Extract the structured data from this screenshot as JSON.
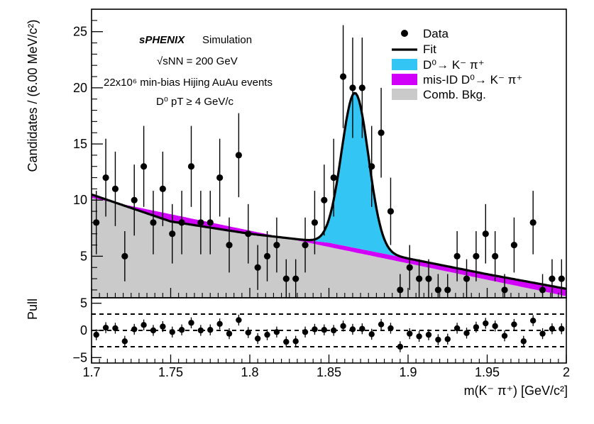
{
  "chart_data": {
    "type": "scatter",
    "x_range": [
      1.7,
      2.0
    ],
    "xlabel": "m(K⁻ π⁺) [GeV/c²]",
    "x_ticks": [
      1.7,
      1.75,
      1.8,
      1.85,
      1.9,
      1.95,
      2.0
    ],
    "x_tick_labels": [
      "1.7",
      "1.75",
      "1.8",
      "1.85",
      "1.9",
      "1.95",
      "2"
    ],
    "main_panel": {
      "ylabel": "Candidates / (6.00 MeV/c²)",
      "ylim": [
        1.3,
        27
      ],
      "y_ticks": [
        5,
        10,
        15,
        20,
        25
      ],
      "y_tick_labels": [
        "5",
        "10",
        "15",
        "20",
        "25"
      ],
      "annotations": {
        "experiment": "sPHENIX",
        "experiment_suffix": "Simulation",
        "energy": "√sNN = 200 GeV",
        "events": "22x10⁶ min-bias Hijing AuAu events",
        "cut": "D⁰ pT ≥ 4 GeV/c"
      },
      "legend": {
        "placement": "top-right",
        "entries": [
          {
            "label": "Data",
            "style": "marker",
            "color": "#000000"
          },
          {
            "label": "Fit",
            "style": "line",
            "color": "#000000"
          },
          {
            "label": "D⁰→ K⁻ π⁺",
            "style": "fill",
            "color": "#33c6f4"
          },
          {
            "label": "mis-ID D⁰→ K⁻ π⁺",
            "style": "fill",
            "color": "#d100f8"
          },
          {
            "label": "Comb. Bkg.",
            "style": "fill",
            "color": "#cacaca"
          }
        ]
      },
      "data_points": {
        "x": [
          1.703,
          1.709,
          1.715,
          1.721,
          1.727,
          1.733,
          1.739,
          1.745,
          1.751,
          1.757,
          1.763,
          1.769,
          1.775,
          1.781,
          1.787,
          1.793,
          1.799,
          1.805,
          1.811,
          1.817,
          1.823,
          1.829,
          1.835,
          1.841,
          1.847,
          1.853,
          1.859,
          1.865,
          1.871,
          1.877,
          1.883,
          1.889,
          1.895,
          1.901,
          1.907,
          1.913,
          1.919,
          1.925,
          1.931,
          1.937,
          1.943,
          1.949,
          1.955,
          1.961,
          1.967,
          1.973,
          1.979,
          1.985,
          1.991,
          1.997
        ],
        "y": [
          8,
          12,
          11,
          5,
          10,
          13,
          8,
          11,
          7,
          8,
          13,
          8,
          8,
          12,
          6,
          14,
          7,
          4,
          5,
          6,
          3,
          3,
          6,
          8,
          10,
          12,
          21,
          20,
          20,
          13,
          16,
          9,
          2,
          4,
          3,
          3,
          2,
          2,
          5,
          3,
          5,
          7,
          5,
          2,
          6,
          0,
          8,
          2,
          3,
          3
        ]
      },
      "components": {
        "comb_bkg": {
          "label": "Comb. Bkg.",
          "x": [
            1.7,
            2.0
          ],
          "y": [
            10.2,
            1.45
          ]
        },
        "misid_top": {
          "label": "mis-ID D⁰→ K⁻ π⁺",
          "x": [
            1.7,
            1.75,
            1.8,
            1.85,
            1.9,
            1.95,
            2.0
          ],
          "y": [
            10.5,
            8.1,
            7.0,
            6.2,
            4.8,
            3.4,
            2.1
          ]
        },
        "signal": {
          "label": "D⁰→ K⁻ π⁺",
          "mean": 1.8665,
          "sigma": 0.0085,
          "amplitude": 13.8
        },
        "fit": {
          "label": "Fit"
        }
      }
    },
    "pull_panel": {
      "ylabel": "Pull",
      "ylim": [
        -6,
        6
      ],
      "y_ticks": [
        -5,
        0,
        5
      ],
      "y_tick_labels": [
        "−5",
        "0",
        "5"
      ],
      "reference_lines": [
        -3,
        0,
        3
      ],
      "x": [
        1.703,
        1.709,
        1.715,
        1.721,
        1.727,
        1.733,
        1.739,
        1.745,
        1.751,
        1.757,
        1.763,
        1.769,
        1.775,
        1.781,
        1.787,
        1.793,
        1.799,
        1.805,
        1.811,
        1.817,
        1.823,
        1.829,
        1.835,
        1.841,
        1.847,
        1.853,
        1.859,
        1.865,
        1.871,
        1.877,
        1.883,
        1.889,
        1.895,
        1.901,
        1.907,
        1.913,
        1.919,
        1.925,
        1.931,
        1.937,
        1.943,
        1.949,
        1.955,
        1.961,
        1.967,
        1.973,
        1.979,
        1.985,
        1.991,
        1.997
      ],
      "y": [
        -0.8,
        0.5,
        0.4,
        -2.0,
        0.2,
        1.0,
        0.0,
        0.7,
        -0.3,
        0.1,
        1.4,
        0.0,
        0.1,
        1.2,
        -0.6,
        1.9,
        -0.4,
        -1.5,
        -0.8,
        -0.3,
        -2.1,
        -2.0,
        -0.3,
        0.2,
        0.1,
        0.0,
        0.8,
        0.2,
        0.3,
        -0.7,
        1.1,
        0.4,
        -3.0,
        -0.6,
        -1.1,
        -0.8,
        -1.7,
        -1.6,
        0.4,
        -0.5,
        0.6,
        1.3,
        0.8,
        -1.0,
        1.1,
        -2.0,
        1.8,
        -0.6,
        0.3,
        0.3
      ]
    }
  }
}
